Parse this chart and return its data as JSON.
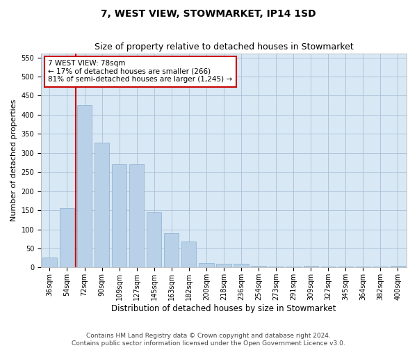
{
  "title": "7, WEST VIEW, STOWMARKET, IP14 1SD",
  "subtitle": "Size of property relative to detached houses in Stowmarket",
  "xlabel": "Distribution of detached houses by size in Stowmarket",
  "ylabel": "Number of detached properties",
  "categories": [
    "36sqm",
    "54sqm",
    "72sqm",
    "90sqm",
    "109sqm",
    "127sqm",
    "145sqm",
    "163sqm",
    "182sqm",
    "200sqm",
    "218sqm",
    "236sqm",
    "254sqm",
    "273sqm",
    "291sqm",
    "309sqm",
    "327sqm",
    "345sqm",
    "364sqm",
    "382sqm",
    "400sqm"
  ],
  "values": [
    27,
    155,
    425,
    327,
    270,
    270,
    145,
    90,
    68,
    12,
    9,
    9,
    4,
    2,
    2,
    5,
    2,
    2,
    2,
    2,
    4
  ],
  "bar_color": "#b8d0e8",
  "bar_edge_color": "#8ab0cc",
  "redline_x": 1.5,
  "annotation_text": "7 WEST VIEW: 78sqm\n← 17% of detached houses are smaller (266)\n81% of semi-detached houses are larger (1,245) →",
  "annotation_box_color": "#ffffff",
  "annotation_box_edge": "#cc0000",
  "redline_color": "#cc0000",
  "ylim": [
    0,
    560
  ],
  "yticks": [
    0,
    50,
    100,
    150,
    200,
    250,
    300,
    350,
    400,
    450,
    500,
    550
  ],
  "grid_color": "#aac0d8",
  "background_color": "#d8e8f4",
  "footer_line1": "Contains HM Land Registry data © Crown copyright and database right 2024.",
  "footer_line2": "Contains public sector information licensed under the Open Government Licence v3.0.",
  "title_fontsize": 10,
  "subtitle_fontsize": 9,
  "xlabel_fontsize": 8.5,
  "ylabel_fontsize": 8,
  "tick_fontsize": 7,
  "footer_fontsize": 6.5,
  "ann_fontsize": 7.5
}
